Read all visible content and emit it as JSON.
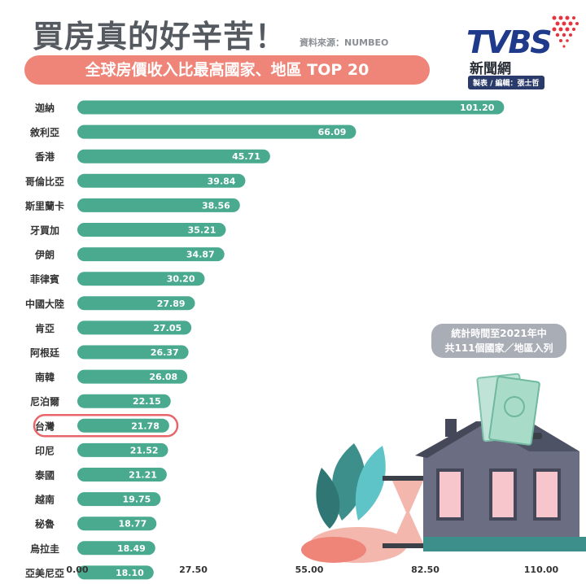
{
  "header": {
    "title": "買房真的好辛苦！",
    "source": "資料來源：NUMBEO",
    "subtitle": "全球房價收入比最高國家、地區 TOP 20"
  },
  "logo": {
    "brand": "TVBS",
    "name": "新聞網",
    "credit": "製表 / 編輯：張士哲"
  },
  "note": {
    "line1": "統計時間至2021年中",
    "line2": "共111個國家／地區入列"
  },
  "colors": {
    "bar": "#4aaa90",
    "highlight": "#e8666b",
    "pill": "#ee8578"
  },
  "chart_data": {
    "type": "bar",
    "orientation": "horizontal",
    "categories": [
      "迦納",
      "敘利亞",
      "香港",
      "哥倫比亞",
      "斯里蘭卡",
      "牙買加",
      "伊朗",
      "菲律賓",
      "中國大陸",
      "肯亞",
      "阿根廷",
      "南韓",
      "尼泊爾",
      "台灣",
      "印尼",
      "泰國",
      "越南",
      "秘魯",
      "烏拉圭",
      "亞美尼亞"
    ],
    "values": [
      101.2,
      66.09,
      45.71,
      39.84,
      38.56,
      35.21,
      34.87,
      30.2,
      27.89,
      27.05,
      26.37,
      26.08,
      22.15,
      21.78,
      21.52,
      21.21,
      19.75,
      18.77,
      18.49,
      18.1
    ],
    "value_labels": [
      "101.20",
      "66.09",
      "45.71",
      "39.84",
      "38.56",
      "35.21",
      "34.87",
      "30.20",
      "27.89",
      "27.05",
      "26.37",
      "26.08",
      "22.15",
      "21.78",
      "21.52",
      "21.21",
      "19.75",
      "18.77",
      "18.49",
      "18.10"
    ],
    "highlighted_category": "台灣",
    "xlim": [
      0,
      110
    ],
    "x_ticks": [
      "0.00",
      "27.50",
      "55.00",
      "82.50",
      "110.00"
    ],
    "title": "全球房價收入比最高國家、地區 TOP 20",
    "grid": false
  }
}
